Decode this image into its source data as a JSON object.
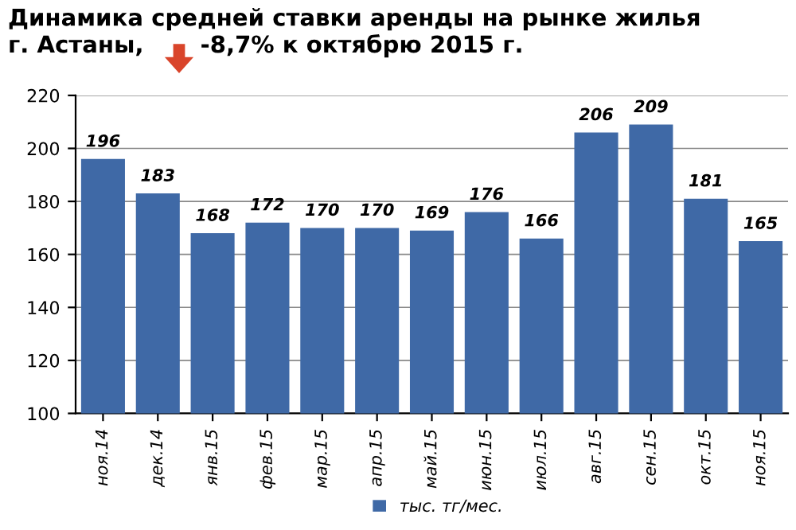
{
  "chart_data": {
    "type": "bar",
    "title": "Динамика средней ставки аренды на рынке жилья\nг. Астаны,       -8,7% к октябрю 2015 г.",
    "categories": [
      "ноя.14",
      "дек.14",
      "янв.15",
      "фев.15",
      "мар.15",
      "апр.15",
      "май.15",
      "июн.15",
      "июл.15",
      "авг.15",
      "сен.15",
      "окт.15",
      "ноя.15"
    ],
    "series": [
      {
        "name": "тыс. тг/мес.",
        "color": "#3f69a6",
        "values": [
          196,
          183,
          168,
          172,
          170,
          170,
          169,
          176,
          166,
          206,
          209,
          181,
          165
        ]
      }
    ],
    "ylim": [
      100,
      220
    ],
    "yticks": [
      100,
      120,
      140,
      160,
      180,
      200,
      220
    ],
    "grid": "y",
    "legend": "bottom",
    "data_labels": true
  }
}
